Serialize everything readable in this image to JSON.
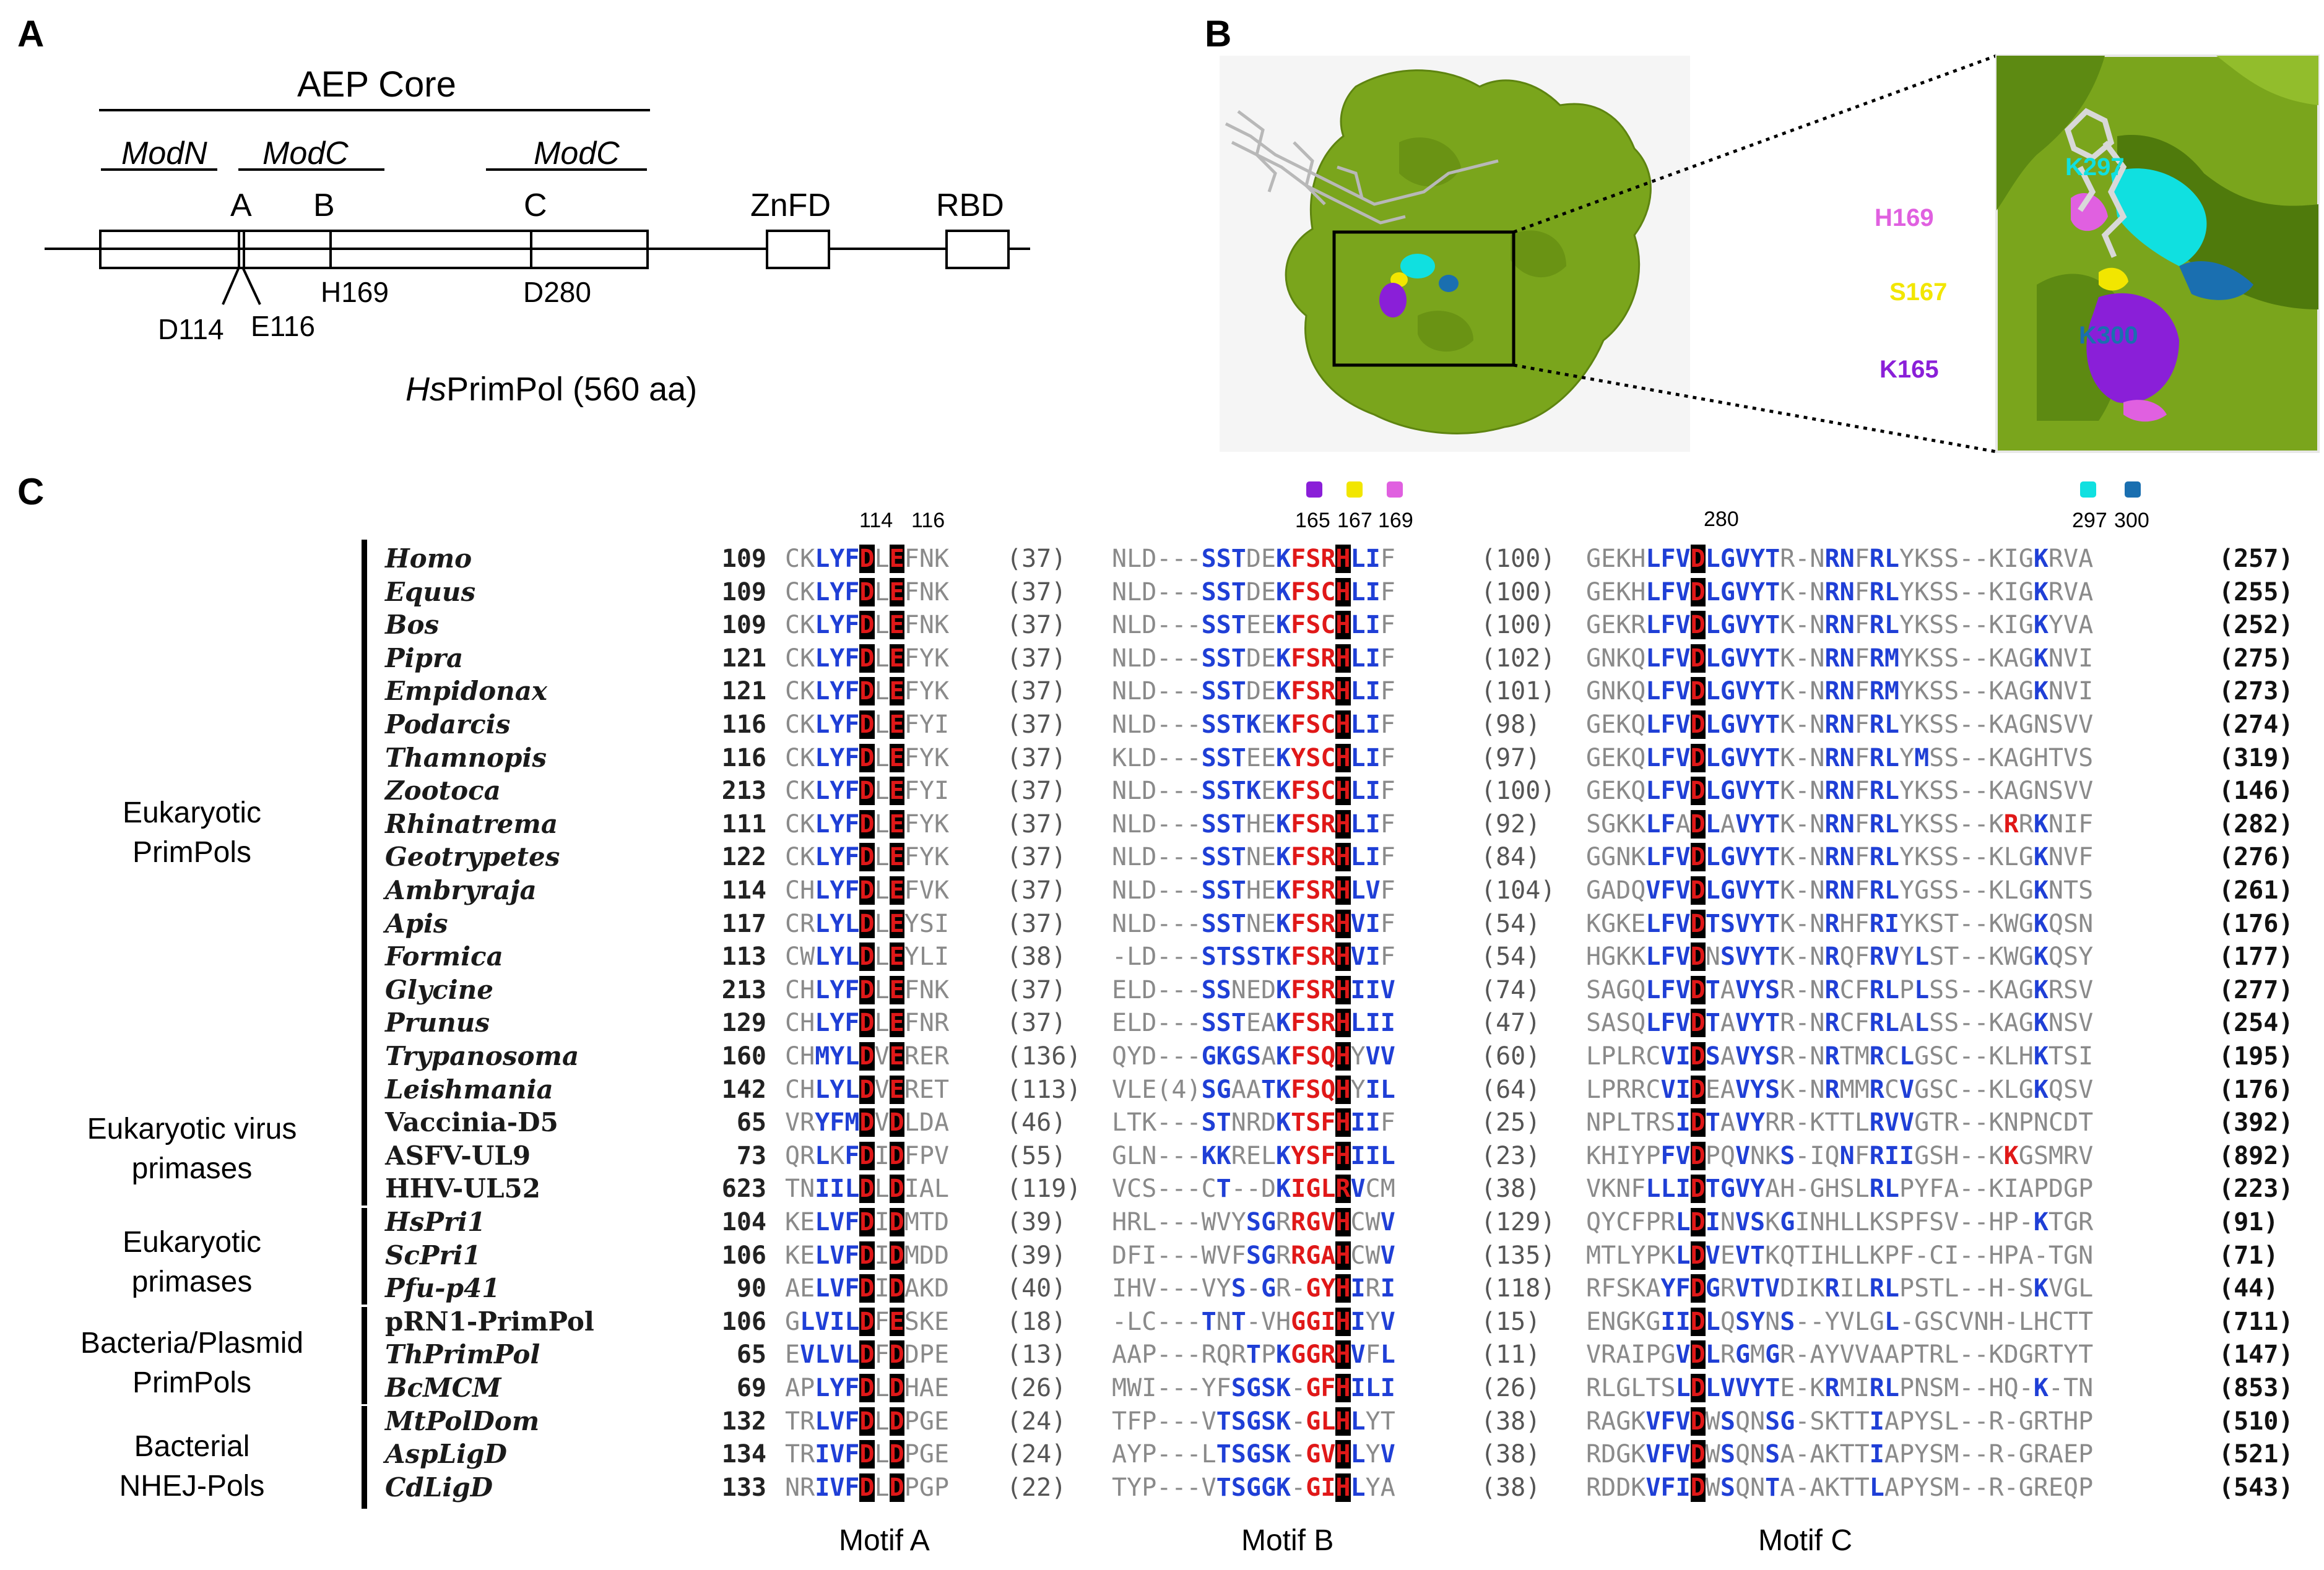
{
  "panelA": {
    "letter": "A",
    "aep_core": "AEP Core",
    "modN": "ModN",
    "modC1": "ModC",
    "modC2": "ModC",
    "motif_A": "A",
    "motif_B": "B",
    "motif_C": "C",
    "znfd": "ZnFD",
    "rbd": "RBD",
    "h169": "H169",
    "d280": "D280",
    "d114": "D114",
    "e116": "E116",
    "protein_prefix": "Hs",
    "protein_name": "PrimPol (560 aa)"
  },
  "panelB": {
    "letter": "B",
    "residues": [
      {
        "label": "K297",
        "color": "#10e0e0"
      },
      {
        "label": "H169",
        "color": "#e060e0"
      },
      {
        "label": "S167",
        "color": "#f2e600"
      },
      {
        "label": "K300",
        "color": "#1a6fb0"
      },
      {
        "label": "K165",
        "color": "#8a1fd8"
      }
    ],
    "surface_color": "#7aa51c"
  },
  "panelC": {
    "letter": "C",
    "position_labels": [
      "114",
      "116",
      "165",
      "167",
      "169",
      "280",
      "297",
      "300"
    ],
    "dot_colors": {
      "165": "#8a1fd8",
      "167": "#f2e600",
      "169": "#e060e0",
      "297": "#10e0e0",
      "300": "#1a6fb0"
    },
    "motifs": [
      "Motif A",
      "Motif B",
      "Motif C"
    ],
    "groups": [
      {
        "label": "Eukaryotic\nPrimPols"
      },
      {
        "label": "Eukaryotic virus\nprimases"
      },
      {
        "label": "Eukaryotic\nprimases"
      },
      {
        "label": "Bacteria/Plasmid\nPrimPols"
      },
      {
        "label": "Bacterial\nNHEJ-Pols"
      }
    ],
    "rows": [
      {
        "name": "Homo",
        "italic": true,
        "start": "109",
        "segA": "CKLYFDLEFNK",
        "gapA": "(37)",
        "segB": "NLD---SSTDEKFSRHLIF",
        "gapB": "(100)",
        "segC": "GEKHLFVDLGVYTR-NRNFRLYKSS--KIGKRVA",
        "end": "(257)"
      },
      {
        "name": "Equus",
        "italic": true,
        "start": "109",
        "segA": "CKLYFDLEFNK",
        "gapA": "(37)",
        "segB": "NLD---SSTDEKFSCHLIF",
        "gapB": "(100)",
        "segC": "GEKHLFVDLGVYTK-NRNFRLYKSS--KIGKRVA",
        "end": "(255)"
      },
      {
        "name": "Bos",
        "italic": true,
        "start": "109",
        "segA": "CKLYFDLEFNK",
        "gapA": "(37)",
        "segB": "NLD---SSTEEKFSCHLIF",
        "gapB": "(100)",
        "segC": "GEKRLFVDLGVYTK-NRNFRLYKSS--KIGKYVA",
        "end": "(252)"
      },
      {
        "name": "Pipra",
        "italic": true,
        "start": "121",
        "segA": "CKLYFDLEFYK",
        "gapA": "(37)",
        "segB": "NLD---SSTDEKFSRHLIF",
        "gapB": "(102)",
        "segC": "GNKQLFVDLGVYTK-NRNFRMYKSS--KAGKNVI",
        "end": "(275)"
      },
      {
        "name": "Empidonax",
        "italic": true,
        "start": "121",
        "segA": "CKLYFDLEFYK",
        "gapA": "(37)",
        "segB": "NLD---SSTDEKFSRHLIF",
        "gapB": "(101)",
        "segC": "GNKQLFVDLGVYTK-NRNFRMYKSS--KAGKNVI",
        "end": "(273)"
      },
      {
        "name": "Podarcis",
        "italic": true,
        "start": "116",
        "segA": "CKLYFDLEFYI",
        "gapA": "(37)",
        "segB": "NLD---SSTKEKFSCHLIF",
        "gapB": "(98)",
        "segC": "GEKQLFVDLGVYTK-NRNFRLYKSS--KAGNSVV",
        "end": "(274)"
      },
      {
        "name": "Thamnopis",
        "italic": true,
        "start": "116",
        "segA": "CKLYFDLEFYK",
        "gapA": "(37)",
        "segB": "KLD---SSTEEKYSCHLIF",
        "gapB": "(97)",
        "segC": "GEKQLFVDLGVYTK-NRNFRLYMSS--KAGHTVS",
        "end": "(319)"
      },
      {
        "name": "Zootoca",
        "italic": true,
        "start": "213",
        "segA": "CKLYFDLEFYI",
        "gapA": "(37)",
        "segB": "NLD---SSTKEKFSCHLIF",
        "gapB": "(100)",
        "segC": "GEKQLFVDLGVYTK-NRNFRLYKSS--KAGNSVV",
        "end": "(146)"
      },
      {
        "name": "Rhinatrema",
        "italic": true,
        "start": "111",
        "segA": "CKLYFDLEFYK",
        "gapA": "(37)",
        "segB": "NLD---SSTHEKFSRHLIF",
        "gapB": "(92)",
        "segC": "SGKKLFADLAVYTK-NRNFRLYKSS--KRRKNIF",
        "end": "(282)"
      },
      {
        "name": "Geotrypetes",
        "italic": true,
        "start": "122",
        "segA": "CKLYFDLEFYK",
        "gapA": "(37)",
        "segB": "NLD---SSTNEKFSRHLIF",
        "gapB": "(84)",
        "segC": "GGNKLFVDLGVYTK-NRNFRLYKSS--KLGKNVF",
        "end": "(276)"
      },
      {
        "name": "Ambryraja",
        "italic": true,
        "start": "114",
        "segA": "CHLYFDLEFVK",
        "gapA": "(37)",
        "segB": "NLD---SSTHEKFSRHLVF",
        "gapB": "(104)",
        "segC": "GADQVFVDLGVYTK-NRNFRLYGSS--KLGKNTS",
        "end": "(261)"
      },
      {
        "name": "Apis",
        "italic": true,
        "start": "117",
        "segA": "CRLYLDLEYSI",
        "gapA": "(37)",
        "segB": "NLD---SSTNEKFSRHVIF",
        "gapB": "(54)",
        "segC": "KGKELFVDTSVYTK-NRHFRIYKST--KWGKQSN",
        "end": "(176)"
      },
      {
        "name": "Formica",
        "italic": true,
        "start": "113",
        "segA": "CWLYLDLEYLI",
        "gapA": "(38)",
        "segB": "-LD---STSSTKFSRHVIF",
        "gapB": "(54)",
        "segC": "HGKKLFVDNSVYTK-NRQFRVYLST--KWGKQSY",
        "end": "(177)"
      },
      {
        "name": "Glycine",
        "italic": true,
        "start": "213",
        "segA": "CHLYFDLEFNK",
        "gapA": "(37)",
        "segB": "ELD---SSNEDKFSRHIIV",
        "gapB": "(74)",
        "segC": "SAGQLFVDTAVYSR-NRCFRLPLSS--KAGKRSV",
        "end": "(277)"
      },
      {
        "name": "Prunus",
        "italic": true,
        "start": "129",
        "segA": "CHLYFDLEFNR",
        "gapA": "(37)",
        "segB": "ELD---SSTEAKFSRHLII",
        "gapB": "(47)",
        "segC": "SASQLFVDTAVYTR-NRCFRLALSS--KAGKNSV",
        "end": "(254)"
      },
      {
        "name": "Trypanosoma",
        "italic": true,
        "start": "160",
        "segA": "CHMYLDVERER",
        "gapA": "(136)",
        "segB": "QYD---GKGSAKFSQHYVV",
        "gapB": "(60)",
        "segC": "LPLRCVIDSAVYSR-NRTMRCLGSC--KLHKTSI",
        "end": "(195)"
      },
      {
        "name": "Leishmania",
        "italic": true,
        "start": "142",
        "segA": "CHLYLDVERET",
        "gapA": "(113)",
        "segB": "VLE(4)SGAATKFSQHYIL",
        "gapB": "(64)",
        "segC": "LPRRCVIDEAVYSK-NRMMRCVGSC--KLGKQSV",
        "end": "(176)"
      },
      {
        "name": "Vaccinia-D5",
        "italic": false,
        "start": "65",
        "segA": "VRYFMDVDLDA",
        "gapA": "(46)",
        "segB": "LTK---STNRDKTSFHIIF",
        "gapB": "(25)",
        "segC": "NPLTRSIDTAVYRR-KTTLRVVGTR--KNPNCDT",
        "end": "(392)"
      },
      {
        "name": "ASFV-UL9",
        "italic": false,
        "start": "73",
        "segA": "QRLKFDIDFPV",
        "gapA": "(55)",
        "segB": "GLN---KKRELKYSFHIIL",
        "gapB": "(23)",
        "segC": "KHIYPFVDPQVNKS-IQNFRIIGSH--KKGSMRV",
        "end": "(892)"
      },
      {
        "name": "HHV-UL52",
        "italic": false,
        "start": "623",
        "segA": "TNIILDLDIAL",
        "gapA": "(119)",
        "segB": "VCS---CT--DKIGLRVCM",
        "gapB": "(38)",
        "segC": "VKNFLLIDTGVYAH-GHSLRLPYFA--KIAPDGP",
        "end": "(223)"
      },
      {
        "name": "HsPri1",
        "italic": true,
        "start": "104",
        "segA": "KELVFDIDMTD",
        "gapA": "(39)",
        "segB": "HRL---WVYSGRRGVHCWV",
        "gapB": "(129)",
        "segC": "QYCFPRLDINVSKGINHLLKSPFSV--HP-KTGR",
        "end": "(91)"
      },
      {
        "name": "ScPri1",
        "italic": true,
        "start": "106",
        "segA": "KELVFDIDMDD",
        "gapA": "(39)",
        "segB": "DFI---WVFSGRRGAHCWV",
        "gapB": "(135)",
        "segC": "MTLYPKLDVEVTKQTIHLLKPF-CI--HPA-TGN",
        "end": "(71)"
      },
      {
        "name": "Pfu-p41",
        "italic": true,
        "start": "90",
        "segA": "AELVFDIDAKD",
        "gapA": "(40)",
        "segB": "IHV---VYS-GR-GYHIRI",
        "gapB": "(118)",
        "segC": "RFSKAYFDGRVTVDIKRILRLPSTL--H-SKVGL",
        "end": "(44)"
      },
      {
        "name": "pRN1-PrimPol",
        "italic": false,
        "start": "106",
        "segA": "GLVILDFESKE",
        "gapA": "(18)",
        "segB": "-LC---TNT-VHGGIHIYV",
        "gapB": "(15)",
        "segC": "ENGKGIIDLQSYNS--YVLGL-GSCVNH-LHCTT",
        "end": "(711)"
      },
      {
        "name": "ThPrimPol",
        "italic": true,
        "start": "65",
        "segA": "EVLVLDFDDPE",
        "gapA": "(13)",
        "segB": "AAP---RQRTPKGGRHVFL",
        "gapB": "(11)",
        "segC": "VRAIPGVDLRGMGR-AYVVAAPTRL--KDGRTYT",
        "end": "(147)"
      },
      {
        "name": "BcMCM",
        "italic": true,
        "start": "69",
        "segA": "APLYFDLDHAE",
        "gapA": "(26)",
        "segB": "MWI---YFSGSK-GFHILI",
        "gapB": "(26)",
        "segC": "RLGLTSLDLVVYTE-KRMIRLPNSM--HQ-K-TN",
        "end": "(853)"
      },
      {
        "name": "MtPolDom",
        "italic": true,
        "start": "132",
        "segA": "TRLVFDLDPGE",
        "gapA": "(24)",
        "segB": "TFP---VTSGSK-GLHLYT",
        "gapB": "(38)",
        "segC": "RAGKVFVDWSQNSG-SKTTIAPYSL--R-GRTHP",
        "end": "(510)"
      },
      {
        "name": "AspLigD",
        "italic": true,
        "start": "134",
        "segA": "TRIVFDLDPGE",
        "gapA": "(24)",
        "segB": "AYP---LTSGSK-GVHLYV",
        "gapB": "(38)",
        "segC": "RDGKVFVDWSQNSA-AKTTIAPYSM--R-GRAEP",
        "end": "(521)"
      },
      {
        "name": "CdLigD",
        "italic": true,
        "start": "133",
        "segA": "NRIVFDLDPGP",
        "gapA": "(22)",
        "segB": "TYP---VTSGGK-GIHLYA",
        "gapB": "(38)",
        "segC": "RDDKVFIDWSQNTA-AKTTLAPYSM--R-GREQP",
        "end": "(543)"
      }
    ]
  }
}
